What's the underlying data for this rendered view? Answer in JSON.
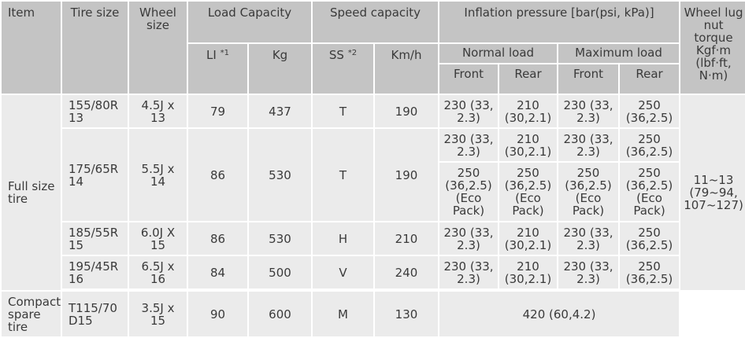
{
  "headers": {
    "item": "Item",
    "tire_size": "Tire size",
    "wheel_size": "Wheel size",
    "load_capacity": "Load Capacity",
    "speed_capacity": "Speed capacity",
    "inflation": "Inflation pressure [bar(psi, kPa)]",
    "wheel_lug": "Wheel lug nut torque Kgf·m (lbf·ft, N·m)",
    "normal_load": "Normal load",
    "maximum_load": "Maximum load",
    "li": "LI",
    "li_note": "*1",
    "kg": "Kg",
    "ss": "SS",
    "ss_note": "*2",
    "kmh": "Km/h",
    "front": "Front",
    "rear": "Rear"
  },
  "full_size_label": "Full size tire",
  "compact_label": "Compact spare tire",
  "lug_value": "11~13 (79~94, 107~127)",
  "rows": [
    {
      "tire": "155/80R 13",
      "wheel": "4.5J x 13",
      "li": "79",
      "kg": "437",
      "ss": "T",
      "kmh": "190",
      "nf": "230 (33, 2.3)",
      "nr": "210 (30,2.1)",
      "mf": "230 (33, 2.3)",
      "mr": "250 (36,2.5)"
    },
    {
      "tire": "175/65R 14",
      "wheel": "5.5J x 14",
      "li": "86",
      "kg": "530",
      "ss": "T",
      "kmh": "190",
      "nf": "230 (33, 2.3)",
      "nr": "210 (30,2.1)",
      "mf": "230 (33, 2.3)",
      "mr": "250 (36,2.5)",
      "eco": {
        "nf": "250 (36,2.5) (Eco Pack)",
        "nr": "250 (36,2.5) (Eco Pack)",
        "mf": "250 (36,2.5) (Eco Pack)",
        "mr": "250 (36,2.5) (Eco Pack)"
      }
    },
    {
      "tire": "185/55R 15",
      "wheel": "6.0J X 15",
      "li": "86",
      "kg": "530",
      "ss": "H",
      "kmh": "210",
      "nf": "230 (33, 2.3)",
      "nr": "210 (30,2.1)",
      "mf": "230 (33, 2.3)",
      "mr": "250 (36,2.5)"
    },
    {
      "tire": "195/45R 16",
      "wheel": "6.5J x 16",
      "li": "84",
      "kg": "500",
      "ss": "V",
      "kmh": "240",
      "nf": "230 (33, 2.3)",
      "nr": "210 (30,2.1)",
      "mf": "230 (33, 2.3)",
      "mr": "250 (36,2.5)"
    }
  ],
  "compact": {
    "tire": "T115/70 D15",
    "wheel": "3.5J x 15",
    "li": "90",
    "kg": "600",
    "ss": "M",
    "kmh": "130",
    "pressure": "420 (60,4.2)"
  }
}
